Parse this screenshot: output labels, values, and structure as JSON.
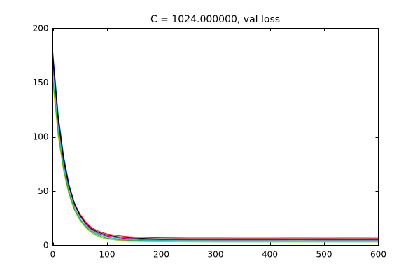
{
  "chart_data": {
    "type": "line",
    "title": "C = 1024.000000, val loss",
    "xlabel": "",
    "ylabel": "",
    "xlim": [
      0,
      600
    ],
    "ylim": [
      0,
      200
    ],
    "xticks": [
      0,
      100,
      200,
      300,
      400,
      500,
      600
    ],
    "xtick_labels": [
      "0",
      "100",
      "200",
      "300",
      "400",
      "500",
      "600"
    ],
    "yticks": [
      0,
      50,
      100,
      150,
      200
    ],
    "ytick_labels": [
      "0",
      "50",
      "100",
      "150",
      "200"
    ],
    "grid": false,
    "legend": "none",
    "series": [
      {
        "color": "#ff0000",
        "x": [
          0,
          10,
          20,
          30,
          40,
          50,
          60,
          70,
          80,
          90,
          100,
          120,
          140,
          160,
          180,
          200,
          250,
          300,
          350,
          400,
          450,
          500,
          550,
          600
        ],
        "y": [
          175,
          118,
          80,
          55,
          39,
          29,
          22,
          17,
          14,
          12,
          10.5,
          9,
          8,
          7.5,
          7.2,
          7,
          6.8,
          6.8,
          6.7,
          6.7,
          6.8,
          6.7,
          6.8,
          6.7
        ]
      },
      {
        "color": "#0000bf",
        "x": [
          0,
          10,
          20,
          30,
          40,
          50,
          60,
          70,
          80,
          90,
          100,
          120,
          140,
          160,
          180,
          200,
          250,
          300,
          350,
          400,
          450,
          500,
          550,
          600
        ],
        "y": [
          178,
          120,
          82,
          56,
          39,
          28,
          20.5,
          15.5,
          12,
          10,
          8.5,
          7,
          6,
          5.6,
          5.3,
          5.2,
          5.1,
          5,
          5,
          5,
          5.1,
          5,
          5,
          5
        ]
      },
      {
        "color": "#bfbf00",
        "x": [
          0,
          10,
          20,
          30,
          40,
          50,
          60,
          70,
          80,
          90,
          100,
          120,
          140,
          160,
          180,
          200,
          250,
          300,
          350,
          400,
          450,
          500,
          550,
          600
        ],
        "y": [
          150,
          100,
          68,
          46,
          32,
          23,
          16.5,
          12,
          9,
          7,
          5.8,
          4.5,
          3.8,
          3.5,
          3.3,
          3.2,
          3.1,
          3,
          3,
          3,
          3,
          3,
          3,
          3
        ]
      },
      {
        "color": "#00bf00",
        "x": [
          0,
          10,
          20,
          30,
          40,
          50,
          60,
          70,
          80,
          90,
          100,
          120,
          140,
          160,
          180,
          200,
          250,
          300,
          350,
          400,
          450,
          500,
          550,
          600
        ],
        "y": [
          155,
          104,
          70,
          48,
          33,
          24,
          17.5,
          13,
          10,
          8,
          6.5,
          5.2,
          4.5,
          4.2,
          4,
          3.9,
          3.8,
          3.7,
          3.7,
          3.7,
          3.7,
          3.7,
          3.7,
          3.7
        ]
      },
      {
        "color": "#00bfbf",
        "x": [
          0,
          10,
          20,
          30,
          40,
          50,
          60,
          70,
          80,
          90,
          100,
          120,
          140,
          160,
          180,
          200,
          250,
          300,
          350,
          400,
          450,
          500,
          550,
          600
        ],
        "y": [
          165,
          110,
          74,
          50,
          35,
          25,
          18.5,
          14,
          11,
          9,
          7.5,
          6,
          5.2,
          4.8,
          4.6,
          4.5,
          4.4,
          4.3,
          4.3,
          4.3,
          4.3,
          4.3,
          4.3,
          4.3
        ]
      },
      {
        "color": "#bf00bf",
        "x": [
          0,
          10,
          20,
          30,
          40,
          50,
          60,
          70,
          80,
          90,
          100,
          120,
          140,
          160,
          180,
          200,
          250,
          300,
          350,
          400,
          450,
          500,
          550,
          600
        ],
        "y": [
          170,
          114,
          77,
          53,
          37,
          27,
          20,
          15,
          12,
          10,
          8.6,
          7,
          6.2,
          5.8,
          5.6,
          5.5,
          5.4,
          5.4,
          5.4,
          5.4,
          5.4,
          5.4,
          5.4,
          5.4
        ]
      },
      {
        "color": "#000000",
        "x": [
          0,
          10,
          20,
          30,
          40,
          50,
          60,
          70,
          80,
          90,
          100,
          120,
          140,
          160,
          180,
          200,
          250,
          300,
          350,
          400,
          450,
          500,
          550,
          600
        ],
        "y": [
          172,
          116,
          78,
          54,
          38,
          28,
          21,
          16,
          13,
          11,
          9.5,
          8,
          7,
          6.5,
          6.2,
          6,
          5.9,
          5.9,
          5.9,
          5.9,
          5.9,
          5.9,
          5.9,
          5.9
        ]
      }
    ]
  }
}
